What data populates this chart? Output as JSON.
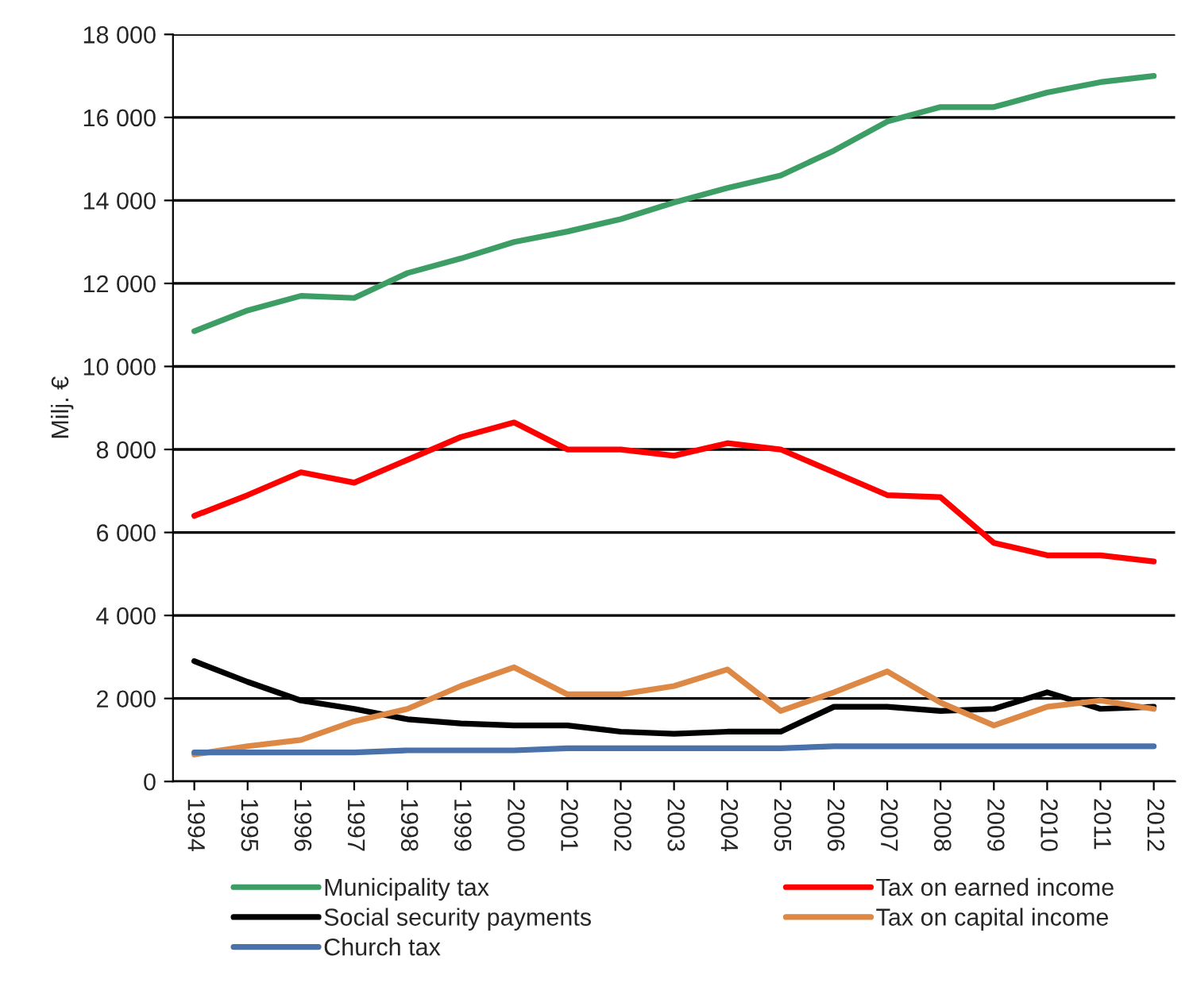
{
  "chart_data": {
    "type": "line",
    "ylabel": "Milj. €",
    "categories": [
      "1994",
      "1995",
      "1996",
      "1997",
      "1998",
      "1999",
      "2000",
      "2001",
      "2002",
      "2003",
      "2004",
      "2005",
      "2006",
      "2007",
      "2008",
      "2009",
      "2010",
      "2011",
      "2012"
    ],
    "series": [
      {
        "name": "Municipality tax",
        "color": "#3c9e64",
        "values": [
          10850,
          11350,
          11700,
          11650,
          12250,
          12600,
          13000,
          13250,
          13550,
          13950,
          14300,
          14600,
          15200,
          15900,
          16250,
          16250,
          16600,
          16850,
          17000
        ]
      },
      {
        "name": "Tax on earned income",
        "color": "#ff0000",
        "values": [
          6400,
          6900,
          7450,
          7200,
          7750,
          8300,
          8650,
          8000,
          8000,
          7850,
          8150,
          8000,
          7450,
          6900,
          6850,
          5750,
          5450,
          5450,
          5300
        ]
      },
      {
        "name": "Social security payments",
        "color": "#000000",
        "values": [
          2900,
          2400,
          1950,
          1750,
          1500,
          1400,
          1350,
          1350,
          1200,
          1150,
          1200,
          1200,
          1800,
          1800,
          1700,
          1750,
          2150,
          1750,
          1800
        ]
      },
      {
        "name": "Tax on capital income",
        "color": "#dd8844",
        "values": [
          650,
          850,
          1000,
          1450,
          1750,
          2300,
          2750,
          2100,
          2100,
          2300,
          2700,
          1700,
          2150,
          2650,
          1900,
          1350,
          1800,
          1950,
          1750
        ]
      },
      {
        "name": "Church tax",
        "color": "#4a72aa",
        "values": [
          700,
          700,
          700,
          700,
          750,
          750,
          750,
          800,
          800,
          800,
          800,
          800,
          850,
          850,
          850,
          850,
          850,
          850,
          850
        ]
      }
    ],
    "ylim": [
      0,
      18000
    ],
    "yticks": [
      {
        "value": 0,
        "label": "0"
      },
      {
        "value": 2000,
        "label": "2 000"
      },
      {
        "value": 4000,
        "label": "4 000"
      },
      {
        "value": 6000,
        "label": "6 000"
      },
      {
        "value": 8000,
        "label": "8 000"
      },
      {
        "value": 10000,
        "label": "10 000"
      },
      {
        "value": 12000,
        "label": "12 000"
      },
      {
        "value": 14000,
        "label": "14 000"
      },
      {
        "value": 16000,
        "label": "16 000"
      },
      {
        "value": 18000,
        "label": "18 000"
      }
    ],
    "grid": "y",
    "legend": "bottom",
    "marker": "none",
    "line_style": "solid"
  }
}
